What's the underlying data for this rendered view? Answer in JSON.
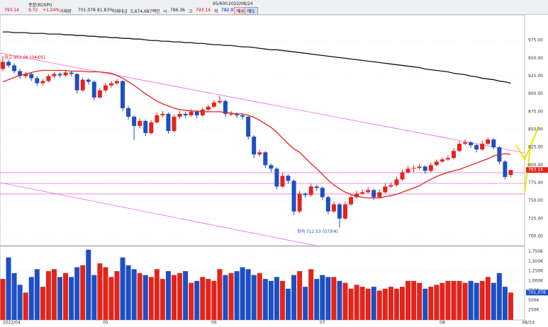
{
  "header": {
    "market": "종합(KOSPI)",
    "count": "95/600",
    "date": "2022/08/24",
    "price": "793.14",
    "change": "9.72",
    "change_pct": "+1.24%",
    "volume_label": "거래량",
    "volume": "701,078",
    "volume_ratio": "81.83%",
    "amount_label": "거래대금",
    "amount": "5,674,687백만",
    "open_label": "시",
    "open": "786.36",
    "high_label": "고",
    "high": "793.14",
    "low_label": "저",
    "low": "782.97",
    "buy": "매수",
    "sell": "매도"
  },
  "chart_data": {
    "type": "candlestick",
    "up_color": "#e3241b",
    "down_color": "#1d4fc4",
    "categories": [
      "2022/04",
      null,
      null,
      null,
      null,
      null,
      null,
      null,
      null,
      null,
      null,
      null,
      null,
      null,
      null,
      null,
      null,
      null,
      "05",
      null,
      null,
      null,
      null,
      null,
      null,
      null,
      null,
      null,
      null,
      null,
      null,
      null,
      null,
      null,
      null,
      null,
      null,
      "06",
      null,
      null,
      null,
      null,
      null,
      null,
      null,
      null,
      null,
      null,
      null,
      null,
      null,
      null,
      null,
      null,
      null,
      null,
      "07",
      null,
      null,
      null,
      null,
      null,
      null,
      null,
      null,
      null,
      null,
      null,
      null,
      null,
      null,
      null,
      null,
      null,
      null,
      null,
      null,
      "08",
      null,
      null,
      null,
      null,
      null,
      null,
      null,
      null,
      null,
      null,
      null,
      "08/24"
    ],
    "candles": [
      [
        935,
        953.06,
        932,
        945
      ],
      [
        945,
        948,
        937,
        940
      ],
      [
        940,
        943,
        929,
        932
      ],
      [
        932,
        935,
        921,
        925
      ],
      [
        925,
        931,
        922,
        928
      ],
      [
        928,
        930,
        918,
        922
      ],
      [
        922,
        925,
        911,
        915
      ],
      [
        915,
        921,
        912,
        918
      ],
      [
        918,
        928,
        916,
        925
      ],
      [
        925,
        931,
        922,
        928
      ],
      [
        928,
        930,
        923,
        926
      ],
      [
        926,
        933,
        924,
        930
      ],
      [
        930,
        932,
        925,
        928
      ],
      [
        928,
        929,
        901,
        905
      ],
      [
        905,
        923,
        903,
        920
      ],
      [
        920,
        922,
        913,
        917
      ],
      [
        917,
        919,
        891,
        895
      ],
      [
        895,
        908,
        893,
        905
      ],
      [
        905,
        915,
        902,
        912
      ],
      [
        912,
        918,
        909,
        915
      ],
      [
        915,
        921,
        913,
        918
      ],
      [
        918,
        919,
        876,
        880
      ],
      [
        880,
        883,
        864,
        868
      ],
      [
        868,
        870,
        835,
        855
      ],
      [
        855,
        866,
        852,
        862
      ],
      [
        862,
        864,
        841,
        845
      ],
      [
        845,
        863,
        843,
        860
      ],
      [
        860,
        874,
        858,
        870
      ],
      [
        870,
        876,
        867,
        872
      ],
      [
        872,
        874,
        844,
        848
      ],
      [
        848,
        871,
        846,
        868
      ],
      [
        868,
        876,
        865,
        872
      ],
      [
        872,
        875,
        866,
        870
      ],
      [
        870,
        879,
        868,
        875
      ],
      [
        875,
        877,
        866,
        870
      ],
      [
        870,
        881,
        868,
        878
      ],
      [
        878,
        885,
        876,
        882
      ],
      [
        882,
        891,
        880,
        888
      ],
      [
        888,
        897,
        886,
        890
      ],
      [
        890,
        892,
        868,
        872
      ],
      [
        872,
        876,
        869,
        872
      ],
      [
        872,
        874,
        866,
        870
      ],
      [
        870,
        872,
        864,
        868
      ],
      [
        868,
        869,
        836,
        840
      ],
      [
        840,
        842,
        810,
        815
      ],
      [
        815,
        822,
        812,
        818
      ],
      [
        818,
        820,
        796,
        800
      ],
      [
        800,
        802,
        790,
        795
      ],
      [
        795,
        797,
        766,
        770
      ],
      [
        770,
        789,
        768,
        785
      ],
      [
        785,
        787,
        774,
        778
      ],
      [
        778,
        780,
        730,
        735
      ],
      [
        735,
        764,
        733,
        760
      ],
      [
        760,
        762,
        754,
        758
      ],
      [
        758,
        774,
        756,
        770
      ],
      [
        770,
        772,
        764,
        768
      ],
      [
        768,
        770,
        751,
        755
      ],
      [
        755,
        757,
        731,
        735
      ],
      [
        735,
        749,
        733,
        745
      ],
      [
        745,
        747,
        712.53,
        725
      ],
      [
        725,
        749,
        723,
        745
      ],
      [
        745,
        759,
        743,
        755
      ],
      [
        755,
        764,
        753,
        760
      ],
      [
        760,
        766,
        758,
        762
      ],
      [
        762,
        769,
        760,
        765
      ],
      [
        765,
        767,
        751,
        755
      ],
      [
        755,
        766,
        753,
        762
      ],
      [
        762,
        774,
        760,
        770
      ],
      [
        770,
        776,
        768,
        772
      ],
      [
        772,
        784,
        770,
        780
      ],
      [
        780,
        794,
        778,
        790
      ],
      [
        790,
        799,
        788,
        795
      ],
      [
        795,
        800,
        790,
        796
      ],
      [
        796,
        802,
        794,
        798
      ],
      [
        798,
        800,
        788,
        792
      ],
      [
        792,
        804,
        790,
        800
      ],
      [
        800,
        808,
        798,
        805
      ],
      [
        805,
        811,
        803,
        808
      ],
      [
        808,
        814,
        806,
        810
      ],
      [
        810,
        824,
        808,
        820
      ],
      [
        820,
        834,
        818,
        830
      ],
      [
        830,
        836,
        828,
        832
      ],
      [
        832,
        834,
        824,
        828
      ],
      [
        828,
        830,
        818,
        822
      ],
      [
        822,
        834,
        820,
        830
      ],
      [
        830,
        839,
        828,
        836
      ],
      [
        836,
        838,
        822,
        825
      ],
      [
        825,
        827,
        801,
        805
      ],
      [
        805,
        807,
        780,
        783.42
      ],
      [
        786.36,
        793.14,
        782.97,
        793.14
      ]
    ],
    "volume": [
      1050000,
      1600000,
      1200000,
      900000,
      700000,
      1100000,
      1300000,
      850000,
      1250000,
      1300000,
      1100000,
      1200000,
      1100000,
      1350000,
      1400000,
      1800000,
      1150000,
      1450000,
      1350000,
      1100000,
      1250000,
      1600000,
      1400000,
      1300000,
      1200000,
      1150000,
      1100000,
      1300000,
      1050000,
      1250000,
      1150000,
      1200000,
      1250000,
      950000,
      1000000,
      1100000,
      1050000,
      1000000,
      1300000,
      1150000,
      1200000,
      1250000,
      1350000,
      1300000,
      1150000,
      1200000,
      1050000,
      1000000,
      1100000,
      1000000,
      800000,
      1150000,
      1250000,
      850000,
      1300000,
      1050000,
      1150000,
      1100000,
      1100000,
      1000000,
      950000,
      800000,
      900000,
      850000,
      800000,
      850000,
      750000,
      800000,
      850000,
      800000,
      850000,
      1000000,
      1000000,
      950000,
      800000,
      850000,
      900000,
      950000,
      1000000,
      1000000,
      1000000,
      950000,
      1000000,
      950000,
      1000000,
      1100000,
      950000,
      1200000,
      850000,
      701078
    ],
    "series": [
      {
        "color": "#e3241b",
        "values": [
          917,
          920,
          923,
          926,
          928,
          930,
          932,
          933,
          933,
          933,
          933,
          933,
          932,
          932,
          932,
          931,
          931,
          931,
          930,
          929,
          926,
          922,
          917,
          912,
          906,
          900,
          895,
          890,
          886,
          883,
          880,
          878,
          877,
          876,
          876,
          875,
          875,
          875,
          875,
          874,
          873,
          872,
          872,
          870,
          867,
          863,
          858,
          853,
          846,
          838,
          830,
          823,
          818,
          810,
          802,
          795,
          787,
          779,
          772,
          767,
          762,
          759,
          756,
          755,
          754,
          754,
          754,
          756,
          757,
          759,
          762,
          765,
          768,
          771,
          776,
          780,
          784,
          787,
          790,
          792,
          794,
          797,
          800,
          803,
          806,
          809,
          813,
          815,
          816,
          815
        ]
      },
      {
        "color": "#111111",
        "values": [
          987,
          987,
          986,
          986,
          986,
          985,
          985,
          985,
          984,
          984,
          984,
          983,
          983,
          982,
          982,
          981,
          981,
          980,
          980,
          979,
          979,
          978,
          978,
          977,
          977,
          976,
          975,
          975,
          974,
          974,
          973,
          973,
          972,
          972,
          971,
          971,
          970,
          969,
          969,
          968,
          968,
          967,
          966,
          966,
          965,
          964,
          963,
          962,
          962,
          961,
          960,
          959,
          958,
          957,
          956,
          955,
          954,
          953,
          952,
          951,
          950,
          949,
          948,
          947,
          946,
          945,
          944,
          943,
          942,
          941,
          940,
          939,
          938,
          937,
          935,
          934,
          933,
          932,
          931,
          929,
          928,
          927,
          925,
          924,
          922,
          921,
          920,
          918,
          917,
          915
        ]
      }
    ],
    "ylim": [
      689,
      1010
    ],
    "yticks": [
      {
        "value": 700,
        "label": "700.00"
      },
      {
        "value": 725,
        "label": "725.00"
      },
      {
        "value": 750,
        "label": "750.00"
      },
      {
        "value": 775,
        "label": "775.00"
      },
      {
        "value": 800,
        "label": "800.00"
      },
      {
        "value": 825,
        "label": "825.00"
      },
      {
        "value": 850,
        "label": "850.00"
      },
      {
        "value": 875,
        "label": "875.00"
      },
      {
        "value": 900,
        "label": "900.00"
      },
      {
        "value": 925,
        "label": "925.00"
      },
      {
        "value": 950,
        "label": "950.00"
      },
      {
        "value": 975,
        "label": "975.00"
      }
    ],
    "y2lim": [
      0,
      1850000
    ],
    "y2ticks": [
      {
        "value": 250000,
        "label": "250K"
      },
      {
        "value": 500000,
        "label": "500K"
      },
      {
        "value": 750000,
        "label": "750K"
      },
      {
        "value": 1000000,
        "label": "1,000K"
      },
      {
        "value": 1250000,
        "label": "1,250K"
      },
      {
        "value": 1500000,
        "label": "1,500K"
      },
      {
        "value": 1750000,
        "label": "1,750K"
      }
    ],
    "price_label": "793.14",
    "volume_value_label": "701,078",
    "annotations": [
      "최고 953.06 (04/05)",
      "최저 712.53 (07/04)"
    ],
    "grid": true
  }
}
